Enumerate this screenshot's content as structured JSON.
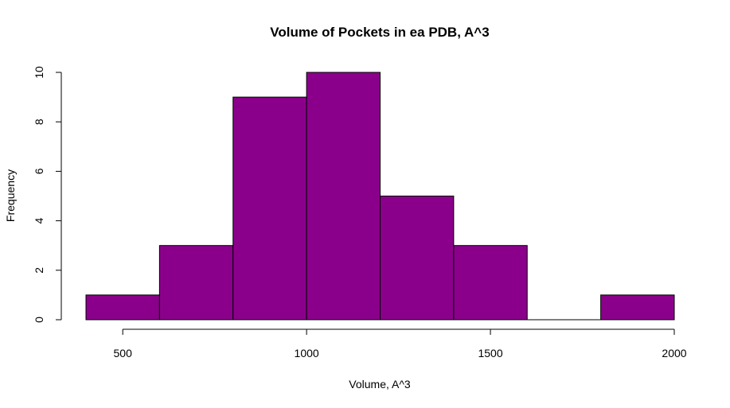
{
  "chart_data": {
    "type": "bar",
    "title": "Volume of Pockets in ea PDB, A^3",
    "xlabel": "Volume, A^3",
    "ylabel": "Frequency",
    "bins": [
      {
        "from": 400,
        "to": 600,
        "count": 1
      },
      {
        "from": 600,
        "to": 800,
        "count": 3
      },
      {
        "from": 800,
        "to": 1000,
        "count": 9
      },
      {
        "from": 1000,
        "to": 1200,
        "count": 10
      },
      {
        "from": 1200,
        "to": 1400,
        "count": 5
      },
      {
        "from": 1400,
        "to": 1600,
        "count": 3
      },
      {
        "from": 1600,
        "to": 1800,
        "count": 0
      },
      {
        "from": 1800,
        "to": 2000,
        "count": 1
      }
    ],
    "xlim": [
      400,
      2000
    ],
    "ylim": [
      0,
      10
    ],
    "x_ticks": [
      500,
      1000,
      1500,
      2000
    ],
    "y_ticks": [
      0,
      2,
      4,
      6,
      8,
      10
    ],
    "bar_color": "#8b008b",
    "border_color": "#000000",
    "grid": false,
    "legend": "none"
  }
}
